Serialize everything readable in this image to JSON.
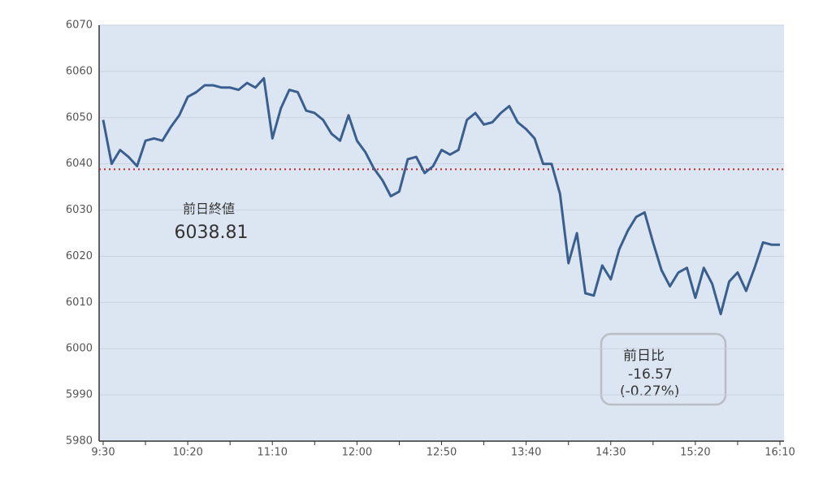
{
  "chart_data": {
    "type": "line",
    "categories": [
      "9:30",
      null,
      null,
      null,
      null,
      null,
      null,
      null,
      null,
      null,
      "10:20",
      null,
      null,
      null,
      null,
      null,
      null,
      null,
      null,
      null,
      "11:10",
      null,
      null,
      null,
      null,
      null,
      null,
      null,
      null,
      null,
      "12:00",
      null,
      null,
      null,
      null,
      null,
      null,
      null,
      null,
      null,
      "12:50",
      null,
      null,
      null,
      null,
      null,
      null,
      null,
      null,
      null,
      "13:40",
      null,
      null,
      null,
      null,
      null,
      null,
      null,
      null,
      null,
      "14:30",
      null,
      null,
      null,
      null,
      null,
      null,
      null,
      null,
      null,
      "15:20",
      null,
      null,
      null,
      null,
      null,
      null,
      null,
      null,
      null,
      "16:10"
    ],
    "series": [
      {
        "color": "#3a5f8f",
        "values": [
          6049.5,
          6040,
          6043,
          6041.5,
          6039.5,
          6045,
          6045.5,
          6045,
          6048,
          6050.5,
          6054.5,
          6055.5,
          6057,
          6057,
          6056.5,
          6056.5,
          6056,
          6057.5,
          6056.5,
          6058.5,
          6045.5,
          6052,
          6056,
          6055.5,
          6051.5,
          6051,
          6049.5,
          6046.5,
          6045,
          6050.5,
          6045,
          6042.5,
          6039,
          6036.5,
          6033,
          6034,
          6041,
          6041.5,
          6038,
          6039.5,
          6043,
          6042,
          6043,
          6049.5,
          6051,
          6048.5,
          6049,
          6051,
          6052.5,
          6049,
          6047.5,
          6045.5,
          6040,
          6040,
          6033.5,
          6018.5,
          6025,
          6012,
          6011.5,
          6018,
          6015,
          6021.5,
          6025.5,
          6028.5,
          6029.5,
          6023,
          6017,
          6013.5,
          6016.5,
          6017.5,
          6011,
          6017.5,
          6014,
          6007.5,
          6014.5,
          6016.5,
          6012.5,
          6017.5,
          6023,
          6022.5,
          6022.5
        ]
      }
    ],
    "ylim": [
      5980,
      6070
    ],
    "yticks": [
      5980,
      5990,
      6000,
      6010,
      6020,
      6030,
      6040,
      6050,
      6060,
      6070
    ],
    "grid": true,
    "reference": {
      "label": "前日終値",
      "value": 6038.81,
      "color": "#c0282d"
    },
    "change_box": {
      "label": "前日比",
      "change": -16.57,
      "percent_label": "(-0.27%)"
    }
  }
}
